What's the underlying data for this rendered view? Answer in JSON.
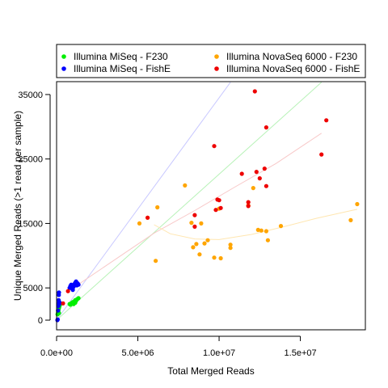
{
  "chart_data": {
    "type": "scatter",
    "xlabel": "Total Merged Reads",
    "ylabel": "Unique Merged Reads (>1 read per sample)",
    "xlim": [
      0,
      19000000
    ],
    "ylim": [
      -1500,
      37000
    ],
    "x_ticks": [
      0,
      5000000,
      10000000,
      15000000
    ],
    "x_tick_labels": [
      "0.0e+00",
      "5.0e+06",
      "1.0e+07",
      "1.5e+07"
    ],
    "y_ticks": [
      0,
      5000,
      15000,
      25000,
      35000
    ],
    "y_tick_labels": [
      "0",
      "5000",
      "15000",
      "25000",
      "35000"
    ],
    "grid": false,
    "legend_position": "top",
    "series": [
      {
        "name": "Illumina MiSeq - F230",
        "color": "#00ee00",
        "points": [
          [
            60000,
            900
          ],
          [
            90000,
            1200
          ],
          [
            110000,
            1500
          ],
          [
            140000,
            1800
          ],
          [
            160000,
            2000
          ],
          [
            200000,
            2300
          ],
          [
            150000,
            1100
          ],
          [
            800000,
            2500
          ],
          [
            850000,
            2400
          ],
          [
            900000,
            2600
          ],
          [
            950000,
            2700
          ],
          [
            1000000,
            2800
          ],
          [
            1050000,
            2500
          ],
          [
            1100000,
            2900
          ],
          [
            1150000,
            2700
          ],
          [
            1200000,
            3000
          ],
          [
            1250000,
            3200
          ],
          [
            1300000,
            3300
          ],
          [
            1350000,
            3400
          ],
          [
            1150000,
            3100
          ]
        ]
      },
      {
        "name": "Illumina MiSeq - FishE",
        "color": "#0000ff",
        "points": [
          [
            50000,
            0
          ],
          [
            70000,
            100
          ],
          [
            90000,
            1500
          ],
          [
            110000,
            2200
          ],
          [
            120000,
            2600
          ],
          [
            130000,
            3100
          ],
          [
            140000,
            3900
          ],
          [
            150000,
            4300
          ],
          [
            160000,
            2500
          ],
          [
            200000,
            2700
          ],
          [
            800000,
            5000
          ],
          [
            850000,
            5300
          ],
          [
            900000,
            5500
          ],
          [
            950000,
            4900
          ],
          [
            1000000,
            4700
          ],
          [
            1050000,
            5200
          ],
          [
            1100000,
            5600
          ],
          [
            1150000,
            5800
          ],
          [
            1200000,
            6000
          ],
          [
            1250000,
            5400
          ],
          [
            1300000,
            5700
          ],
          [
            1350000,
            5500
          ]
        ]
      },
      {
        "name": "Illumina NovaSeq 6000 - F230",
        "color": "#ffa500",
        "points": [
          [
            5100000,
            15000
          ],
          [
            5600000,
            15900
          ],
          [
            6100000,
            9200
          ],
          [
            6200000,
            17500
          ],
          [
            7900000,
            20900
          ],
          [
            8300000,
            15100
          ],
          [
            8400000,
            11300
          ],
          [
            8600000,
            11800
          ],
          [
            8800000,
            10200
          ],
          [
            8900000,
            15000
          ],
          [
            9100000,
            11900
          ],
          [
            9300000,
            12400
          ],
          [
            9700000,
            9700
          ],
          [
            10000000,
            17300
          ],
          [
            10100000,
            9600
          ],
          [
            10700000,
            11700
          ],
          [
            10700000,
            11200
          ],
          [
            11800000,
            17800
          ],
          [
            12100000,
            20500
          ],
          [
            12400000,
            14000
          ],
          [
            12600000,
            13900
          ],
          [
            12900000,
            13800
          ],
          [
            13000000,
            12400
          ],
          [
            13800000,
            14600
          ],
          [
            18100000,
            15500
          ],
          [
            18500000,
            18000
          ]
        ]
      },
      {
        "name": "Illumina NovaSeq 6000 - FishE",
        "color": "#ee0000",
        "points": [
          [
            400000,
            2600
          ],
          [
            700000,
            4500
          ],
          [
            5600000,
            15900
          ],
          [
            8500000,
            14500
          ],
          [
            8500000,
            16300
          ],
          [
            9700000,
            27000
          ],
          [
            9800000,
            17100
          ],
          [
            9900000,
            18700
          ],
          [
            10000000,
            18600
          ],
          [
            10100000,
            17400
          ],
          [
            11400000,
            22700
          ],
          [
            11800000,
            18300
          ],
          [
            11800000,
            17700
          ],
          [
            12200000,
            35500
          ],
          [
            12300000,
            23000
          ],
          [
            12500000,
            22000
          ],
          [
            12800000,
            23500
          ],
          [
            12900000,
            29900
          ],
          [
            12900000,
            20800
          ],
          [
            16300000,
            25700
          ],
          [
            16600000,
            31000
          ]
        ]
      }
    ],
    "trend_lines": [
      {
        "color": "#c8c8ff",
        "points": [
          [
            0,
            0
          ],
          [
            10700000,
            36900
          ]
        ]
      },
      {
        "color": "#b8f2b8",
        "points": [
          [
            0,
            0
          ],
          [
            16300000,
            36900
          ]
        ]
      },
      {
        "color": "#f8c8c8",
        "points": [
          [
            1200000,
            5300
          ],
          [
            6000000,
            13500
          ],
          [
            8500000,
            17000
          ],
          [
            11000000,
            20700
          ],
          [
            13500000,
            24300
          ],
          [
            16300000,
            29000
          ]
        ]
      },
      {
        "color": "#ffe6b0",
        "points": [
          [
            6000000,
            14800
          ],
          [
            7000000,
            13400
          ],
          [
            8500000,
            12600
          ],
          [
            10000000,
            12500
          ],
          [
            12000000,
            13300
          ],
          [
            14000000,
            14500
          ],
          [
            16000000,
            15800
          ],
          [
            18500000,
            17200
          ]
        ]
      }
    ]
  }
}
